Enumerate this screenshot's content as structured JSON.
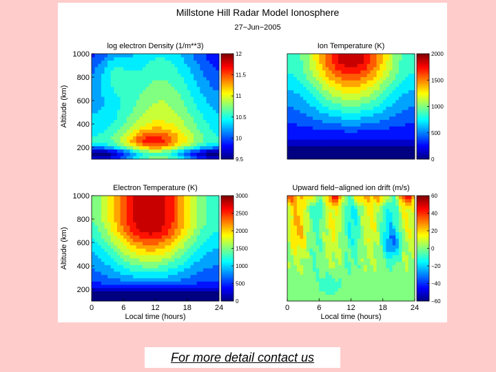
{
  "figure": {
    "title": "Millstone Hill Radar Model Ionosphere",
    "date": "27−Jun−2005"
  },
  "footer": {
    "link_text": "For more detail contact us"
  },
  "colormap": "jet",
  "chart_data": [
    {
      "type": "heatmap",
      "title": "log electron Density (1/m**3)",
      "xlabel": "",
      "ylabel": "Altitude (km)",
      "xlim": [
        0,
        24
      ],
      "ylim": [
        100,
        1000
      ],
      "yticks": [
        200,
        400,
        600,
        800,
        1000
      ],
      "xticks": [],
      "colorbar": {
        "min": 9.5,
        "max": 12,
        "ticks": [
          9.5,
          10,
          10.5,
          11,
          11.5,
          12
        ],
        "tick_labels": [
          "9.5",
          "10",
          "10.5",
          "11",
          "11.5",
          "12"
        ]
      },
      "field": "density"
    },
    {
      "type": "heatmap",
      "title": "Ion Temperature (K)",
      "xlabel": "",
      "ylabel": "",
      "xlim": [
        0,
        24
      ],
      "ylim": [
        100,
        1000
      ],
      "yticks": [],
      "xticks": [],
      "colorbar": {
        "min": 0,
        "max": 2000,
        "ticks": [
          0,
          500,
          1000,
          1500,
          2000
        ],
        "tick_labels": [
          "0",
          "500",
          "1000",
          "1500",
          "2000"
        ]
      },
      "field": "ion_temp"
    },
    {
      "type": "heatmap",
      "title": "Electron Temperature (K)",
      "xlabel": "Local time (hours)",
      "ylabel": "Altitude (km)",
      "xlim": [
        0,
        24
      ],
      "ylim": [
        100,
        1000
      ],
      "yticks": [
        200,
        400,
        600,
        800,
        1000
      ],
      "xticks": [
        0,
        6,
        12,
        18,
        24
      ],
      "colorbar": {
        "min": 0,
        "max": 3000,
        "ticks": [
          0,
          500,
          1000,
          1500,
          2000,
          2500,
          3000
        ],
        "tick_labels": [
          "0",
          "500",
          "1000",
          "1500",
          "2000",
          "2500",
          "3000"
        ]
      },
      "field": "elec_temp"
    },
    {
      "type": "heatmap",
      "title": "Upward field−aligned ion drift (m/s)",
      "xlabel": "Local time (hours)",
      "ylabel": "",
      "xlim": [
        0,
        24
      ],
      "ylim": [
        100,
        1000
      ],
      "yticks": [],
      "xticks": [
        0,
        6,
        12,
        18,
        24
      ],
      "colorbar": {
        "min": -60,
        "max": 60,
        "ticks": [
          -60,
          -40,
          -20,
          0,
          20,
          40,
          60
        ],
        "tick_labels": [
          "−60",
          "−40",
          "−20",
          "0",
          "20",
          "40",
          "60"
        ]
      },
      "field": "ion_drift"
    }
  ]
}
